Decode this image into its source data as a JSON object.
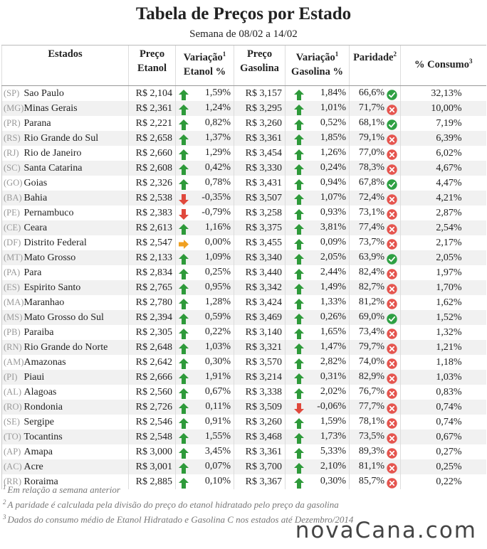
{
  "header": {
    "title": "Tabela de Preços por Estado",
    "subtitle": "Semana de 08/02 a 14/02"
  },
  "table": {
    "columns": [
      {
        "lines": [
          "Estados"
        ]
      },
      {
        "lines": [
          "Preço",
          "Etanol"
        ]
      },
      {
        "lines": [
          "Variação",
          "Etanol %"
        ],
        "note": "1"
      },
      {
        "lines": [
          "Preço",
          "Gasolina"
        ]
      },
      {
        "lines": [
          "Variação",
          "Gasolina %"
        ],
        "note": "1"
      },
      {
        "lines": [
          "Paridade"
        ],
        "note": "2"
      },
      {
        "lines": [
          "% Consumo"
        ],
        "note": "3"
      }
    ],
    "rows": [
      {
        "uf": "(SP)",
        "state": "Sao Paulo",
        "etanol": "R$ 2,104",
        "trend_etanol": "up",
        "var_etanol": "1,59%",
        "gasolina": "R$ 3,157",
        "trend_gasolina": "up",
        "var_gasolina": "1,84%",
        "paridade": "66,6%",
        "favorable": true,
        "consumo": "32,13%"
      },
      {
        "uf": "(MG)",
        "state": "Minas Gerais",
        "etanol": "R$ 2,361",
        "trend_etanol": "up",
        "var_etanol": "1,24%",
        "gasolina": "R$ 3,295",
        "trend_gasolina": "up",
        "var_gasolina": "1,01%",
        "paridade": "71,7%",
        "favorable": false,
        "consumo": "10,00%"
      },
      {
        "uf": "(PR)",
        "state": "Parana",
        "etanol": "R$ 2,221",
        "trend_etanol": "up",
        "var_etanol": "0,82%",
        "gasolina": "R$ 3,260",
        "trend_gasolina": "up",
        "var_gasolina": "0,52%",
        "paridade": "68,1%",
        "favorable": true,
        "consumo": "7,19%"
      },
      {
        "uf": "(RS)",
        "state": "Rio Grande do Sul",
        "etanol": "R$ 2,658",
        "trend_etanol": "up",
        "var_etanol": "1,37%",
        "gasolina": "R$ 3,361",
        "trend_gasolina": "up",
        "var_gasolina": "1,85%",
        "paridade": "79,1%",
        "favorable": false,
        "consumo": "6,39%"
      },
      {
        "uf": "(RJ)",
        "state": "Rio de Janeiro",
        "etanol": "R$ 2,660",
        "trend_etanol": "up",
        "var_etanol": "1,29%",
        "gasolina": "R$ 3,454",
        "trend_gasolina": "up",
        "var_gasolina": "1,26%",
        "paridade": "77,0%",
        "favorable": false,
        "consumo": "6,02%"
      },
      {
        "uf": "(SC)",
        "state": "Santa Catarina",
        "etanol": "R$ 2,608",
        "trend_etanol": "up",
        "var_etanol": "0,42%",
        "gasolina": "R$ 3,330",
        "trend_gasolina": "up",
        "var_gasolina": "0,24%",
        "paridade": "78,3%",
        "favorable": false,
        "consumo": "4,67%"
      },
      {
        "uf": "(GO)",
        "state": "Goias",
        "etanol": "R$ 2,326",
        "trend_etanol": "up",
        "var_etanol": "0,78%",
        "gasolina": "R$ 3,431",
        "trend_gasolina": "up",
        "var_gasolina": "0,94%",
        "paridade": "67,8%",
        "favorable": true,
        "consumo": "4,47%"
      },
      {
        "uf": "(BA)",
        "state": "Bahia",
        "etanol": "R$ 2,538",
        "trend_etanol": "down",
        "var_etanol": "-0,35%",
        "gasolina": "R$ 3,507",
        "trend_gasolina": "up",
        "var_gasolina": "1,07%",
        "paridade": "72,4%",
        "favorable": false,
        "consumo": "4,21%"
      },
      {
        "uf": "(PE)",
        "state": "Pernambuco",
        "etanol": "R$ 2,383",
        "trend_etanol": "down",
        "var_etanol": "-0,79%",
        "gasolina": "R$ 3,258",
        "trend_gasolina": "up",
        "var_gasolina": "0,93%",
        "paridade": "73,1%",
        "favorable": false,
        "consumo": "2,87%"
      },
      {
        "uf": "(CE)",
        "state": "Ceara",
        "etanol": "R$ 2,613",
        "trend_etanol": "up",
        "var_etanol": "1,16%",
        "gasolina": "R$ 3,375",
        "trend_gasolina": "up",
        "var_gasolina": "3,81%",
        "paridade": "77,4%",
        "favorable": false,
        "consumo": "2,54%"
      },
      {
        "uf": "(DF)",
        "state": "Distrito Federal",
        "etanol": "R$ 2,547",
        "trend_etanol": "flat",
        "var_etanol": "0,00%",
        "gasolina": "R$ 3,455",
        "trend_gasolina": "up",
        "var_gasolina": "0,09%",
        "paridade": "73,7%",
        "favorable": false,
        "consumo": "2,17%"
      },
      {
        "uf": "(MT)",
        "state": "Mato Grosso",
        "etanol": "R$ 2,133",
        "trend_etanol": "up",
        "var_etanol": "1,09%",
        "gasolina": "R$ 3,340",
        "trend_gasolina": "up",
        "var_gasolina": "2,05%",
        "paridade": "63,9%",
        "favorable": true,
        "consumo": "2,05%"
      },
      {
        "uf": "(PA)",
        "state": "Para",
        "etanol": "R$ 2,834",
        "trend_etanol": "up",
        "var_etanol": "0,25%",
        "gasolina": "R$ 3,440",
        "trend_gasolina": "up",
        "var_gasolina": "2,44%",
        "paridade": "82,4%",
        "favorable": false,
        "consumo": "1,97%"
      },
      {
        "uf": "(ES)",
        "state": "Espirito Santo",
        "etanol": "R$ 2,765",
        "trend_etanol": "up",
        "var_etanol": "0,95%",
        "gasolina": "R$ 3,342",
        "trend_gasolina": "up",
        "var_gasolina": "1,49%",
        "paridade": "82,7%",
        "favorable": false,
        "consumo": "1,70%"
      },
      {
        "uf": "(MA)",
        "state": "Maranhao",
        "etanol": "R$ 2,780",
        "trend_etanol": "up",
        "var_etanol": "1,28%",
        "gasolina": "R$ 3,424",
        "trend_gasolina": "up",
        "var_gasolina": "1,33%",
        "paridade": "81,2%",
        "favorable": false,
        "consumo": "1,62%"
      },
      {
        "uf": "(MS)",
        "state": "Mato Grosso do Sul",
        "etanol": "R$ 2,394",
        "trend_etanol": "up",
        "var_etanol": "0,59%",
        "gasolina": "R$ 3,469",
        "trend_gasolina": "up",
        "var_gasolina": "0,26%",
        "paridade": "69,0%",
        "favorable": true,
        "consumo": "1,52%"
      },
      {
        "uf": "(PB)",
        "state": "Paraiba",
        "etanol": "R$ 2,305",
        "trend_etanol": "up",
        "var_etanol": "0,22%",
        "gasolina": "R$ 3,140",
        "trend_gasolina": "up",
        "var_gasolina": "1,65%",
        "paridade": "73,4%",
        "favorable": false,
        "consumo": "1,32%"
      },
      {
        "uf": "(RN)",
        "state": "Rio Grande do Norte",
        "etanol": "R$ 2,648",
        "trend_etanol": "up",
        "var_etanol": "1,03%",
        "gasolina": "R$ 3,321",
        "trend_gasolina": "up",
        "var_gasolina": "1,47%",
        "paridade": "79,7%",
        "favorable": false,
        "consumo": "1,21%"
      },
      {
        "uf": "(AM)",
        "state": "Amazonas",
        "etanol": "R$ 2,642",
        "trend_etanol": "up",
        "var_etanol": "0,30%",
        "gasolina": "R$ 3,570",
        "trend_gasolina": "up",
        "var_gasolina": "2,82%",
        "paridade": "74,0%",
        "favorable": false,
        "consumo": "1,18%"
      },
      {
        "uf": "(PI)",
        "state": "Piaui",
        "etanol": "R$ 2,666",
        "trend_etanol": "up",
        "var_etanol": "1,91%",
        "gasolina": "R$ 3,214",
        "trend_gasolina": "up",
        "var_gasolina": "0,31%",
        "paridade": "82,9%",
        "favorable": false,
        "consumo": "1,03%"
      },
      {
        "uf": "(AL)",
        "state": "Alagoas",
        "etanol": "R$ 2,560",
        "trend_etanol": "up",
        "var_etanol": "0,67%",
        "gasolina": "R$ 3,338",
        "trend_gasolina": "up",
        "var_gasolina": "2,02%",
        "paridade": "76,7%",
        "favorable": false,
        "consumo": "0,83%"
      },
      {
        "uf": "(RO)",
        "state": "Rondonia",
        "etanol": "R$ 2,726",
        "trend_etanol": "up",
        "var_etanol": "0,11%",
        "gasolina": "R$ 3,509",
        "trend_gasolina": "down",
        "var_gasolina": "-0,06%",
        "paridade": "77,7%",
        "favorable": false,
        "consumo": "0,74%"
      },
      {
        "uf": "(SE)",
        "state": "Sergipe",
        "etanol": "R$ 2,546",
        "trend_etanol": "up",
        "var_etanol": "0,91%",
        "gasolina": "R$ 3,260",
        "trend_gasolina": "up",
        "var_gasolina": "1,59%",
        "paridade": "78,1%",
        "favorable": false,
        "consumo": "0,74%"
      },
      {
        "uf": "(TO)",
        "state": "Tocantins",
        "etanol": "R$ 2,548",
        "trend_etanol": "up",
        "var_etanol": "1,55%",
        "gasolina": "R$ 3,468",
        "trend_gasolina": "up",
        "var_gasolina": "1,73%",
        "paridade": "73,5%",
        "favorable": false,
        "consumo": "0,67%"
      },
      {
        "uf": "(AP)",
        "state": "Amapa",
        "etanol": "R$ 3,000",
        "trend_etanol": "up",
        "var_etanol": "3,45%",
        "gasolina": "R$ 3,361",
        "trend_gasolina": "up",
        "var_gasolina": "5,33%",
        "paridade": "89,3%",
        "favorable": false,
        "consumo": "0,27%"
      },
      {
        "uf": "(AC)",
        "state": "Acre",
        "etanol": "R$ 3,001",
        "trend_etanol": "up",
        "var_etanol": "0,07%",
        "gasolina": "R$ 3,700",
        "trend_gasolina": "up",
        "var_gasolina": "2,10%",
        "paridade": "81,1%",
        "favorable": false,
        "consumo": "0,25%"
      },
      {
        "uf": "(RR)",
        "state": "Roraima",
        "etanol": "R$ 2,885",
        "trend_etanol": "up",
        "var_etanol": "0,10%",
        "gasolina": "R$ 3,367",
        "trend_gasolina": "up",
        "var_gasolina": "0,30%",
        "paridade": "85,7%",
        "favorable": false,
        "consumo": "0,22%"
      }
    ]
  },
  "footnotes": [
    {
      "mark": "1",
      "text": "Em relação a semana anterior"
    },
    {
      "mark": "2",
      "text": "A paridade é calculada pela divisão do preço do etanol hidratado pelo preço da gasolina"
    },
    {
      "mark": "3",
      "text": "Dados do consumo médio de Etanol Hidratado e Gasolina C nos estados até Dezembro/2014"
    }
  ],
  "logo": "novaCana.com"
}
